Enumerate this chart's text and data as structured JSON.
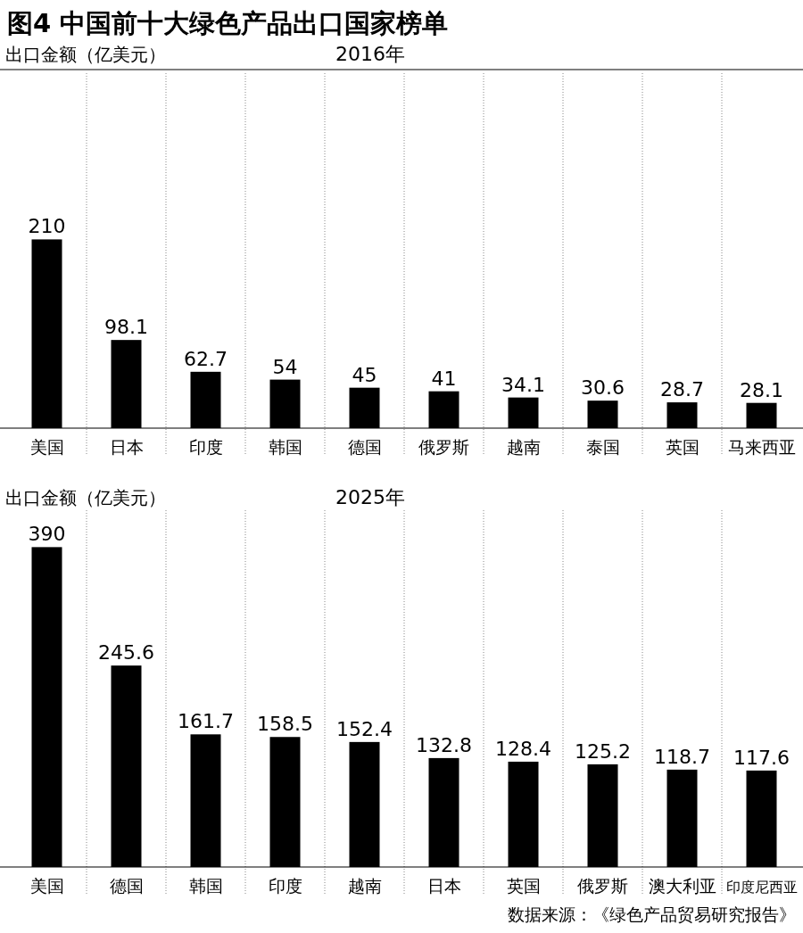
{
  "chart_data": [
    {
      "type": "bar",
      "title": "图4 中国前十大绿色产品出口国家榜单",
      "subtitle": "2016年",
      "ylabel": "出口金额（亿美元）",
      "categories": [
        "美国",
        "日本",
        "印度",
        "韩国",
        "德国",
        "俄罗斯",
        "越南",
        "泰国",
        "英国",
        "马来西亚"
      ],
      "values": [
        210,
        98.1,
        62.7,
        54,
        45,
        41,
        34.1,
        30.6,
        28.7,
        28.1
      ],
      "color": "#000000",
      "data_labels": true,
      "ylim": [
        0,
        395
      ],
      "grid": "x"
    },
    {
      "type": "bar",
      "title": "2025年",
      "ylabel": "出口金额（亿美元）",
      "categories": [
        "美国",
        "德国",
        "韩国",
        "印度",
        "越南",
        "日本",
        "英国",
        "俄罗斯",
        "澳大利亚",
        "印度尼西亚"
      ],
      "values": [
        390,
        245.6,
        161.7,
        158.5,
        152.4,
        132.8,
        128.4,
        125.2,
        118.7,
        117.6
      ],
      "color": "#000000",
      "data_labels": true,
      "ylim": [
        0,
        435
      ],
      "grid": "x",
      "annotations": [
        "数据来源：《绿色产品贸易研究报告》"
      ]
    }
  ]
}
